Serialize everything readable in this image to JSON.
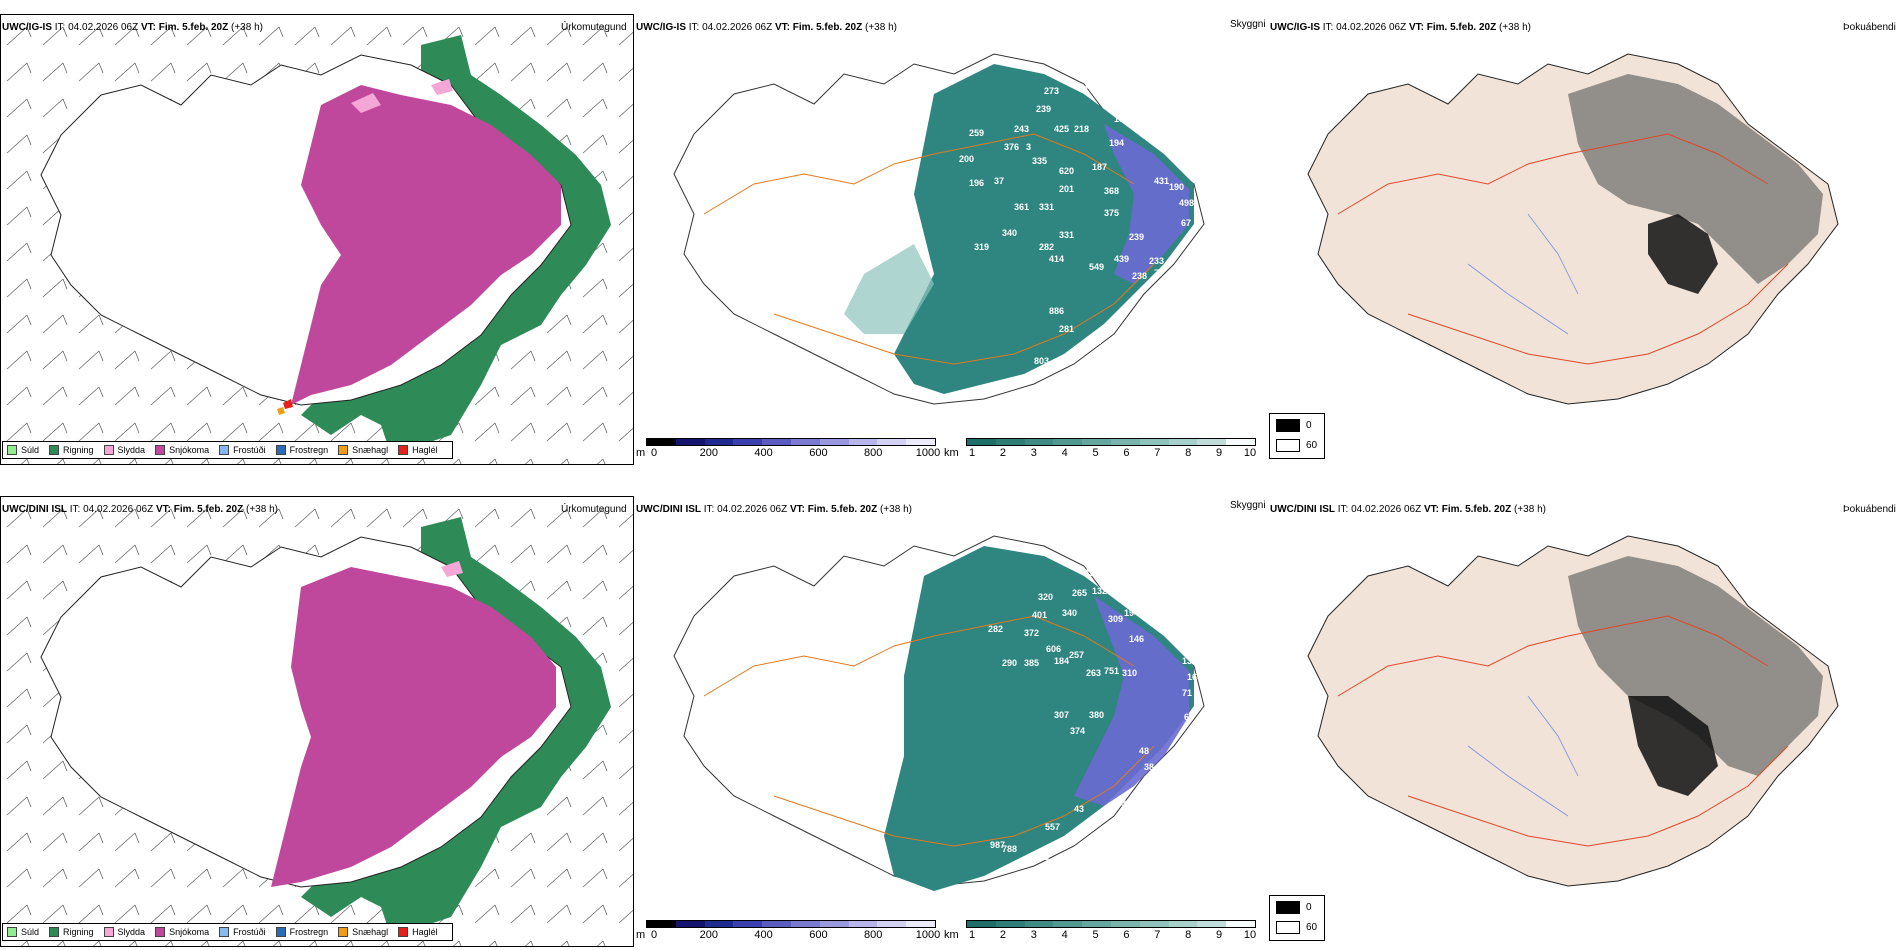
{
  "rows": [
    {
      "model": "UWC/IG-IS",
      "it_label": "IT:",
      "it_value": "04.02.2026 06Z",
      "vt_label": "VT:",
      "vt_value": "Fim. 5.feb. 20Z",
      "lead": "(+38 h)",
      "titles": [
        "Úrkomutegund",
        "Skyggni",
        "Þokuábendi"
      ],
      "cloud_labels": [
        "273",
        "310",
        "239",
        "218",
        "154",
        "243",
        "425",
        "194",
        "259",
        "376",
        "3",
        "200",
        "335",
        "620",
        "187",
        "469",
        "196",
        "37",
        "201",
        "190",
        "368",
        "431",
        "498",
        "361",
        "331",
        "375",
        "67",
        "340",
        "282",
        "331",
        "239",
        "319",
        "414",
        "549",
        "439",
        "233",
        "238",
        "77",
        "57",
        "58",
        "886",
        "281",
        "372",
        "803",
        "348"
      ]
    },
    {
      "model": "UWC/DINI ISL",
      "it_label": "IT:",
      "it_value": "04.02.2026 06Z",
      "vt_label": "VT:",
      "vt_value": "Fim. 5.feb. 20Z",
      "lead": "(+38 h)",
      "titles": [
        "Úrkomutegund",
        "Skyggni",
        "Þokuábendi"
      ],
      "cloud_labels": [
        "295",
        "141",
        "320",
        "265",
        "132",
        "194",
        "171",
        "401",
        "340",
        "309",
        "81",
        "282",
        "372",
        "146",
        "125",
        "606",
        "257",
        "184",
        "139",
        "290",
        "385",
        "263",
        "751",
        "310",
        "168",
        "71",
        "307",
        "380",
        "63",
        "374",
        "48",
        "38",
        "51",
        "41",
        "39",
        "43",
        "557",
        "987",
        "788",
        "393",
        "845"
      ]
    }
  ],
  "precip_legend": [
    {
      "label": "Súld",
      "color": "#90ee90"
    },
    {
      "label": "Rigning",
      "color": "#2e8b57"
    },
    {
      "label": "Slydda",
      "color": "#f4a6d7"
    },
    {
      "label": "Snjókoma",
      "color": "#c0489c"
    },
    {
      "label": "Frostúði",
      "color": "#87b8f0"
    },
    {
      "label": "Frostregn",
      "color": "#2a6cb8"
    },
    {
      "label": "Snæhagl",
      "color": "#f39c12"
    },
    {
      "label": "Haglél",
      "color": "#e8201a"
    }
  ],
  "cloudbase_bar": {
    "unit": "m",
    "ticks": [
      "0",
      "200",
      "400",
      "600",
      "800",
      "1000"
    ],
    "colors": [
      "#000000",
      "#14146e",
      "#1f2a90",
      "#3a3fae",
      "#5a5cc2",
      "#7a7bd0",
      "#9a98de",
      "#b7b5ea",
      "#d3d1f4",
      "#ecebfb"
    ]
  },
  "visibility_bar": {
    "unit": "km",
    "ticks": [
      "1",
      "2",
      "3",
      "4",
      "5",
      "6",
      "7",
      "8",
      "9",
      "10"
    ],
    "colors": [
      "#1e6f6a",
      "#2e7d77",
      "#3f8a84",
      "#519891",
      "#65a69f",
      "#7ab4ad",
      "#90c2bc",
      "#a7d0cb",
      "#c0ddda",
      "#f6fbfb"
    ]
  },
  "fog_legend": [
    {
      "label": "0",
      "color": "#000000"
    },
    {
      "label": "60",
      "color": "#ffffff"
    }
  ],
  "colors": {
    "rain": "#2e8b57",
    "snow": "#c0489c",
    "sleet": "#f4a6d7",
    "vis_teal": "#2f8580",
    "vis_light": "#8cc3bb",
    "low_cloud": "#6a6ad2",
    "roads": "#e07a1f",
    "land_fog": "#f1e3d7",
    "roads_fog": "#e0472a",
    "rivers": "#7c8ee6"
  }
}
